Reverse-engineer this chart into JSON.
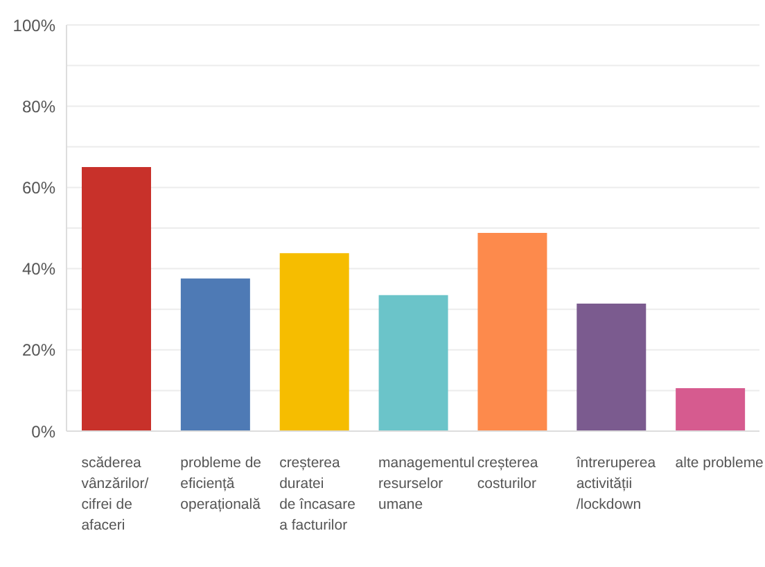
{
  "chart_data": {
    "type": "bar",
    "categories": [
      "scăderea\nvânzărilor/\ncifrei de\nafaceri",
      "probleme de\neficiență\noperațională",
      "creșterea\nduratei\nde încasare\na facturilor",
      "managementul\nresurselor\numane",
      "creșterea\ncosturilor",
      "întreruperea\nactivității\n/lockdown",
      "alte probleme"
    ],
    "values": [
      65,
      37.6,
      43.8,
      33.5,
      48.8,
      31.4,
      10.6
    ],
    "colors": [
      "#c8312a",
      "#4e7ab5",
      "#f6bd00",
      "#6bc4c9",
      "#fd8a4c",
      "#7b5b8f",
      "#d65b8f"
    ],
    "ylim": [
      0,
      100
    ],
    "yticks": [
      {
        "value": 0,
        "label": "0%"
      },
      {
        "value": 10,
        "label": null
      },
      {
        "value": 20,
        "label": "20%"
      },
      {
        "value": 30,
        "label": null
      },
      {
        "value": 40,
        "label": "40%"
      },
      {
        "value": 50,
        "label": null
      },
      {
        "value": 60,
        "label": "60%"
      },
      {
        "value": 70,
        "label": null
      },
      {
        "value": 80,
        "label": "80%"
      },
      {
        "value": 90,
        "label": null
      },
      {
        "value": 100,
        "label": "100%"
      }
    ],
    "grid": "y"
  }
}
